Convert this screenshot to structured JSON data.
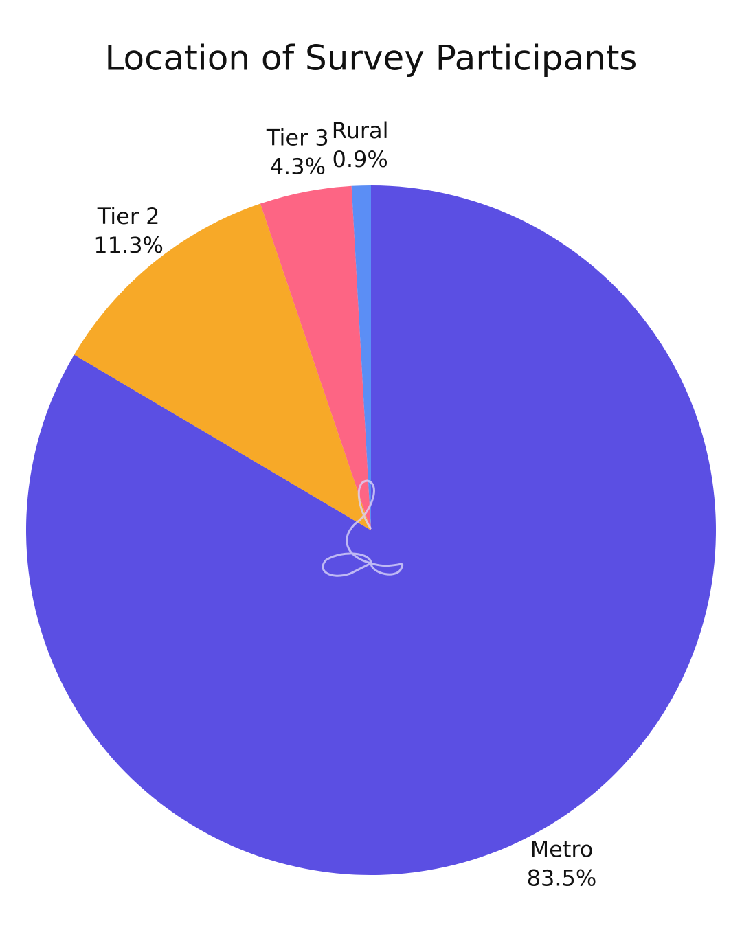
{
  "chart_data": {
    "type": "pie",
    "title": "Location of Survey Participants",
    "categories": [
      "Metro",
      "Tier 2",
      "Tier 3",
      "Rural"
    ],
    "values": [
      83.5,
      11.3,
      4.3,
      0.9
    ],
    "value_labels": [
      "83.5%",
      "11.3%",
      "4.3%",
      "0.9%"
    ],
    "colors": [
      "#5b4fe3",
      "#f7a928",
      "#fd6584",
      "#5b8ef5"
    ]
  }
}
